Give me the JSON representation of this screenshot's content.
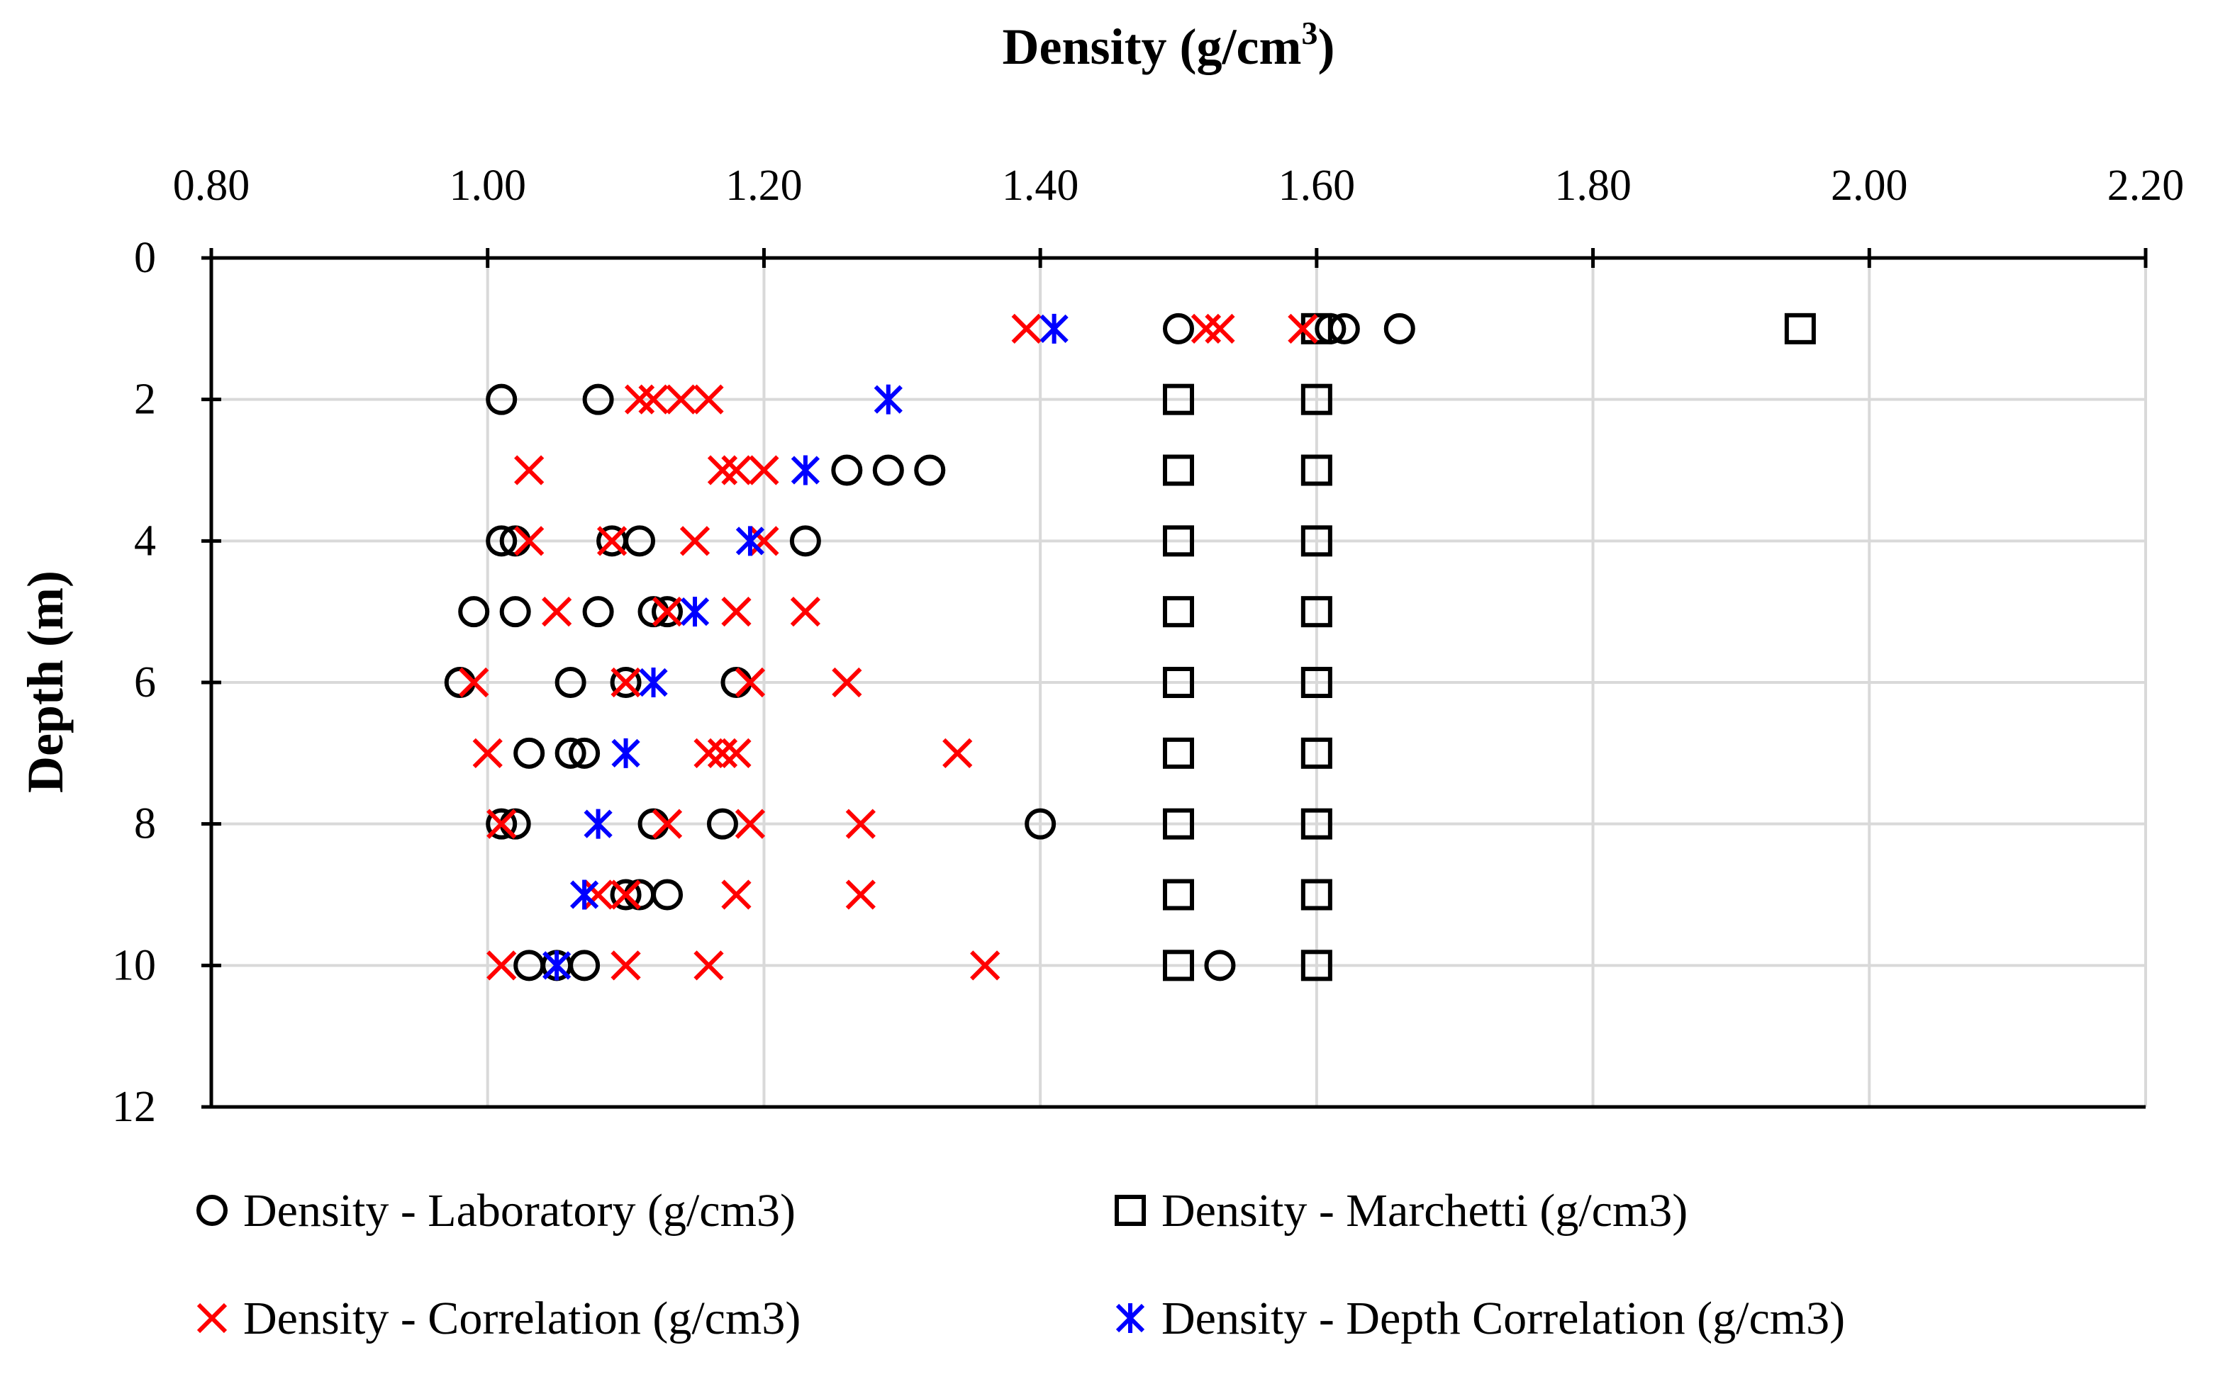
{
  "chart_data": {
    "type": "scatter",
    "title": "Density (g/cm",
    "title_superscript": "3",
    "title_close": ")",
    "xlabel": "Density (g/cm3)",
    "ylabel": "Depth (m)",
    "xlim": [
      0.8,
      2.2
    ],
    "ylim": [
      0,
      12
    ],
    "y_inverted": true,
    "x_axis_position": "top",
    "x_ticks": [
      0.8,
      1.0,
      1.2,
      1.4,
      1.6,
      1.8,
      2.0,
      2.2
    ],
    "x_tick_labels": [
      "0.80",
      "1.00",
      "1.20",
      "1.40",
      "1.60",
      "1.80",
      "2.00",
      "2.20"
    ],
    "y_ticks": [
      0,
      2,
      4,
      6,
      8,
      10,
      12
    ],
    "y_tick_labels": [
      "0",
      "2",
      "4",
      "6",
      "8",
      "10",
      "12"
    ],
    "grid": true,
    "legend_position": "bottom",
    "series": [
      {
        "name": "Density - Laboratory (g/cm3)",
        "marker": "circle",
        "color": "#000000",
        "points": [
          [
            1.5,
            1
          ],
          [
            1.61,
            1
          ],
          [
            1.62,
            1
          ],
          [
            1.66,
            1
          ],
          [
            1.01,
            2
          ],
          [
            1.08,
            2
          ],
          [
            1.26,
            3
          ],
          [
            1.29,
            3
          ],
          [
            1.32,
            3
          ],
          [
            1.01,
            4
          ],
          [
            1.02,
            4
          ],
          [
            1.09,
            4
          ],
          [
            1.11,
            4
          ],
          [
            1.23,
            4
          ],
          [
            0.99,
            5
          ],
          [
            1.02,
            5
          ],
          [
            1.08,
            5
          ],
          [
            1.12,
            5
          ],
          [
            1.13,
            5
          ],
          [
            0.98,
            6
          ],
          [
            1.06,
            6
          ],
          [
            1.1,
            6
          ],
          [
            1.18,
            6
          ],
          [
            1.03,
            7
          ],
          [
            1.06,
            7
          ],
          [
            1.07,
            7
          ],
          [
            1.01,
            8
          ],
          [
            1.02,
            8
          ],
          [
            1.12,
            8
          ],
          [
            1.17,
            8
          ],
          [
            1.4,
            8
          ],
          [
            1.1,
            9
          ],
          [
            1.11,
            9
          ],
          [
            1.13,
            9
          ],
          [
            1.03,
            10
          ],
          [
            1.05,
            10
          ],
          [
            1.07,
            10
          ],
          [
            1.53,
            10
          ]
        ]
      },
      {
        "name": "Density - Marchetti (g/cm3)",
        "marker": "square",
        "color": "#000000",
        "points": [
          [
            1.6,
            1
          ],
          [
            1.95,
            1
          ],
          [
            1.5,
            2
          ],
          [
            1.6,
            2
          ],
          [
            1.5,
            3
          ],
          [
            1.6,
            3
          ],
          [
            1.5,
            4
          ],
          [
            1.6,
            4
          ],
          [
            1.5,
            5
          ],
          [
            1.6,
            5
          ],
          [
            1.5,
            6
          ],
          [
            1.6,
            6
          ],
          [
            1.5,
            7
          ],
          [
            1.6,
            7
          ],
          [
            1.5,
            8
          ],
          [
            1.6,
            8
          ],
          [
            1.5,
            9
          ],
          [
            1.6,
            9
          ],
          [
            1.5,
            10
          ],
          [
            1.6,
            10
          ]
        ]
      },
      {
        "name": "Density - Correlation (g/cm3)",
        "marker": "x",
        "color": "#ff0000",
        "points": [
          [
            1.39,
            1
          ],
          [
            1.52,
            1
          ],
          [
            1.53,
            1
          ],
          [
            1.59,
            1
          ],
          [
            1.11,
            2
          ],
          [
            1.12,
            2
          ],
          [
            1.14,
            2
          ],
          [
            1.16,
            2
          ],
          [
            1.03,
            3
          ],
          [
            1.17,
            3
          ],
          [
            1.18,
            3
          ],
          [
            1.2,
            3
          ],
          [
            1.03,
            4
          ],
          [
            1.09,
            4
          ],
          [
            1.15,
            4
          ],
          [
            1.2,
            4
          ],
          [
            1.05,
            5
          ],
          [
            1.13,
            5
          ],
          [
            1.18,
            5
          ],
          [
            1.23,
            5
          ],
          [
            0.99,
            6
          ],
          [
            1.1,
            6
          ],
          [
            1.19,
            6
          ],
          [
            1.26,
            6
          ],
          [
            1.0,
            7
          ],
          [
            1.16,
            7
          ],
          [
            1.17,
            7
          ],
          [
            1.18,
            7
          ],
          [
            1.34,
            7
          ],
          [
            1.01,
            8
          ],
          [
            1.13,
            8
          ],
          [
            1.19,
            8
          ],
          [
            1.27,
            8
          ],
          [
            1.08,
            9
          ],
          [
            1.1,
            9
          ],
          [
            1.18,
            9
          ],
          [
            1.27,
            9
          ],
          [
            1.01,
            10
          ],
          [
            1.1,
            10
          ],
          [
            1.16,
            10
          ],
          [
            1.36,
            10
          ]
        ]
      },
      {
        "name": "Density - Depth Correlation (g/cm3)",
        "marker": "asterisk",
        "color": "#0000ff",
        "points": [
          [
            1.41,
            1
          ],
          [
            1.29,
            2
          ],
          [
            1.23,
            3
          ],
          [
            1.19,
            4
          ],
          [
            1.15,
            5
          ],
          [
            1.12,
            6
          ],
          [
            1.1,
            7
          ],
          [
            1.08,
            8
          ],
          [
            1.07,
            9
          ],
          [
            1.05,
            10
          ]
        ]
      }
    ]
  }
}
